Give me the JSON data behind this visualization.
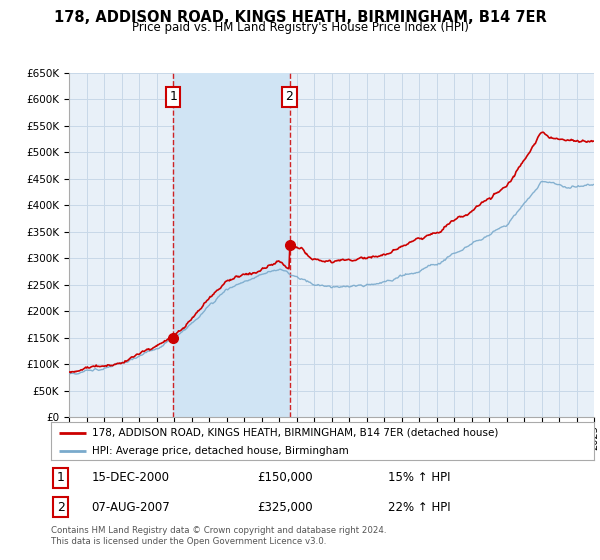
{
  "title": "178, ADDISON ROAD, KINGS HEATH, BIRMINGHAM, B14 7ER",
  "subtitle": "Price paid vs. HM Land Registry's House Price Index (HPI)",
  "ylim": [
    0,
    650000
  ],
  "yticks": [
    0,
    50000,
    100000,
    150000,
    200000,
    250000,
    300000,
    350000,
    400000,
    450000,
    500000,
    550000,
    600000,
    650000
  ],
  "background_color": "#ffffff",
  "grid_color": "#c8d8e8",
  "plot_bg_color": "#e8f0f8",
  "shade_color": "#d0e4f4",
  "red_color": "#cc0000",
  "blue_color": "#7aaacc",
  "purchase1_year": 2000.96,
  "purchase1_price": 150000,
  "purchase2_year": 2007.6,
  "purchase2_price": 325000,
  "legend_red": "178, ADDISON ROAD, KINGS HEATH, BIRMINGHAM, B14 7ER (detached house)",
  "legend_blue": "HPI: Average price, detached house, Birmingham",
  "footnote": "Contains HM Land Registry data © Crown copyright and database right 2024.\nThis data is licensed under the Open Government Licence v3.0.",
  "xmin": 1995,
  "xmax": 2025
}
